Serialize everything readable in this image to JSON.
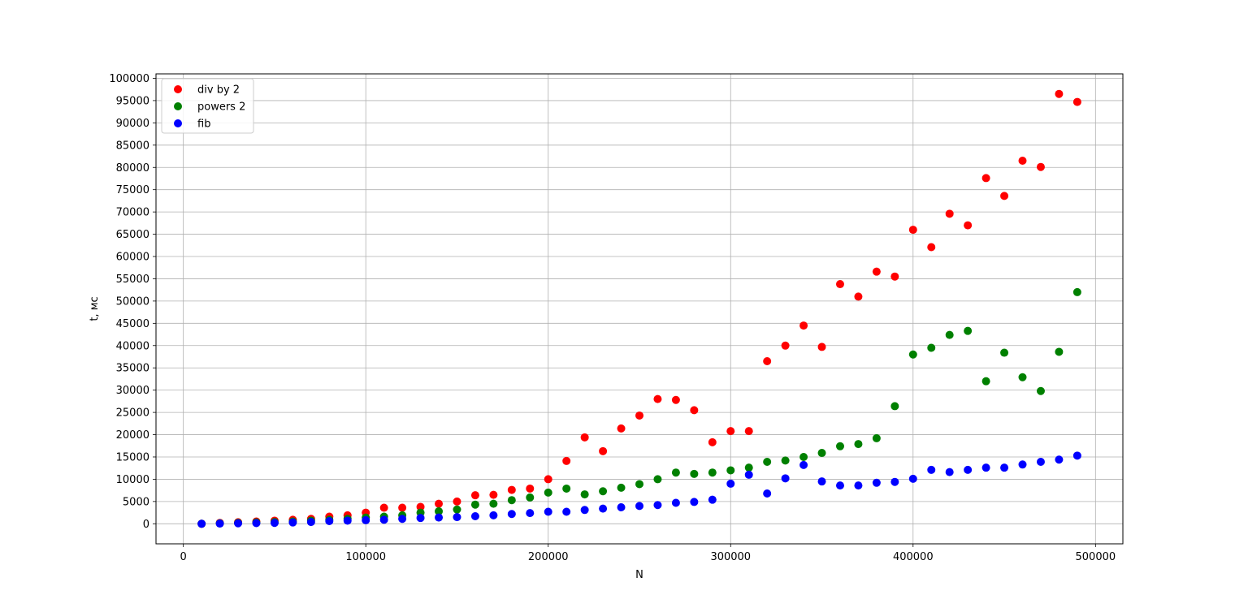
{
  "chart_data": {
    "type": "scatter",
    "title": "",
    "xlabel": "N",
    "ylabel": "t, мс",
    "xlim": [
      -15000,
      515000
    ],
    "ylim": [
      -4500,
      101000
    ],
    "xticks": [
      0,
      100000,
      200000,
      300000,
      400000,
      500000
    ],
    "yticks": [
      0,
      5000,
      10000,
      15000,
      20000,
      25000,
      30000,
      35000,
      40000,
      45000,
      50000,
      55000,
      60000,
      65000,
      70000,
      75000,
      80000,
      85000,
      90000,
      95000,
      100000
    ],
    "grid": true,
    "legend_position": "upper-left",
    "x": [
      10000,
      20000,
      30000,
      40000,
      50000,
      60000,
      70000,
      80000,
      90000,
      100000,
      110000,
      120000,
      130000,
      140000,
      150000,
      160000,
      170000,
      180000,
      190000,
      200000,
      210000,
      220000,
      230000,
      240000,
      250000,
      260000,
      270000,
      280000,
      290000,
      300000,
      310000,
      320000,
      330000,
      340000,
      350000,
      360000,
      370000,
      380000,
      390000,
      400000,
      410000,
      420000,
      430000,
      440000,
      450000,
      460000,
      470000,
      480000,
      490000
    ],
    "series": [
      {
        "name": "div by 2",
        "color": "#ff0000",
        "values": [
          0,
          200,
          350,
          500,
          700,
          900,
          1100,
          1600,
          1900,
          2500,
          3600,
          3600,
          3800,
          4500,
          5000,
          6400,
          6500,
          7600,
          7900,
          10000,
          14100,
          19400,
          16300,
          21400,
          24300,
          28000,
          27800,
          25500,
          18300,
          20800,
          20800,
          36500,
          40000,
          44500,
          39700,
          53800,
          51000,
          56600,
          55500,
          66000,
          62100,
          69600,
          67000,
          77600,
          73600,
          81500,
          80100,
          96500,
          94700
        ]
      },
      {
        "name": "powers 2",
        "color": "#008000",
        "values": [
          0,
          100,
          200,
          300,
          400,
          500,
          700,
          900,
          1100,
          1400,
          1600,
          1900,
          2500,
          2800,
          3200,
          4300,
          4500,
          5300,
          5900,
          7000,
          7900,
          6600,
          7300,
          8100,
          8900,
          10000,
          11500,
          11200,
          11500,
          12000,
          12600,
          13900,
          14200,
          15000,
          15900,
          17400,
          17900,
          19200,
          26400,
          38000,
          39500,
          42400,
          43300,
          32000,
          38400,
          32900,
          29800,
          38600,
          52000
        ]
      },
      {
        "name": "fib",
        "color": "#0000ff",
        "values": [
          0,
          50,
          100,
          150,
          200,
          300,
          400,
          600,
          700,
          800,
          900,
          1100,
          1300,
          1400,
          1500,
          1700,
          1900,
          2200,
          2400,
          2700,
          2700,
          3100,
          3400,
          3700,
          4000,
          4200,
          4700,
          4900,
          5400,
          9000,
          11000,
          6800,
          10200,
          13200,
          9500,
          8600,
          8600,
          9200,
          9400,
          10100,
          12100,
          11600,
          12100,
          12600,
          12600,
          13300,
          13900,
          14400,
          15300
        ]
      }
    ]
  }
}
